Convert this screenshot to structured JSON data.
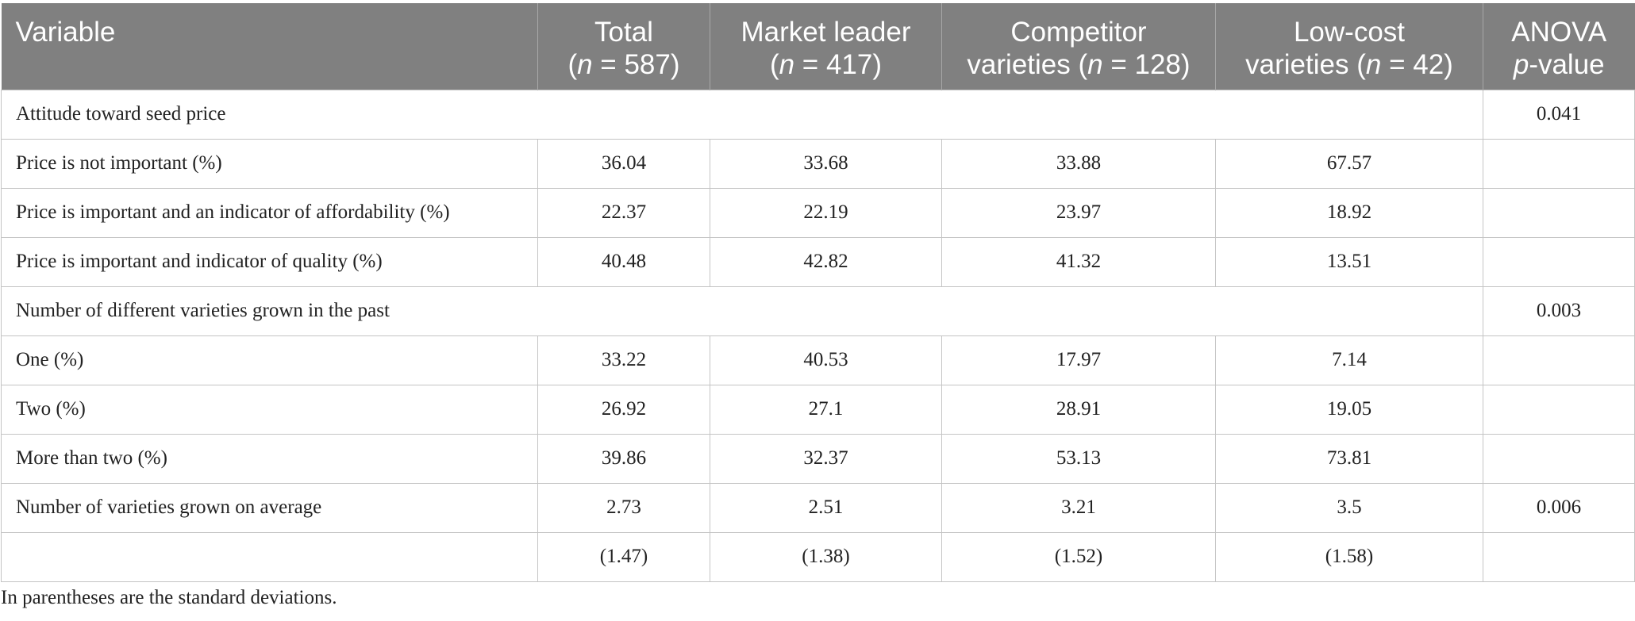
{
  "table": {
    "headers": [
      {
        "line1": "Variable",
        "line2": ""
      },
      {
        "line1": "Total",
        "line2_pre": "(",
        "line2_em": "n",
        "line2_post": " = 587)"
      },
      {
        "line1": "Market leader",
        "line2_pre": "(",
        "line2_em": "n",
        "line2_post": " = 417)"
      },
      {
        "line1": "Competitor",
        "line2_pre": "varieties (",
        "line2_em": "n",
        "line2_post": " = 128)"
      },
      {
        "line1": "Low-cost",
        "line2_pre": "varieties (",
        "line2_em": "n",
        "line2_post": " = 42)"
      },
      {
        "line1": "ANOVA",
        "line2_pre": "",
        "line2_em": "p",
        "line2_post": "-value"
      }
    ],
    "rows": [
      {
        "label": "Attitude toward seed price",
        "p": "0.041"
      },
      {
        "label": "Price is not important (%)",
        "values": [
          "36.04",
          "33.68",
          "33.88",
          "67.57"
        ],
        "p": ""
      },
      {
        "label": "Price is important and an indicator of affordability (%)",
        "values": [
          "22.37",
          "22.19",
          "23.97",
          "18.92"
        ],
        "p": ""
      },
      {
        "label": "Price is important and indicator of quality (%)",
        "values": [
          "40.48",
          "42.82",
          "41.32",
          "13.51"
        ],
        "p": ""
      },
      {
        "label": "Number of different varieties grown in the past",
        "p": "0.003"
      },
      {
        "label": "One (%)",
        "values": [
          "33.22",
          "40.53",
          "17.97",
          "7.14"
        ],
        "p": ""
      },
      {
        "label": "Two (%)",
        "values": [
          "26.92",
          "27.1",
          "28.91",
          "19.05"
        ],
        "p": ""
      },
      {
        "label": "More than two (%)",
        "values": [
          "39.86",
          "32.37",
          "53.13",
          "73.81"
        ],
        "p": ""
      },
      {
        "label": "Number of varieties grown on average",
        "values": [
          "2.73",
          "2.51",
          "3.21",
          "3.5"
        ],
        "p": "0.006"
      },
      {
        "label": "",
        "values": [
          "(1.47)",
          "(1.38)",
          "(1.52)",
          "(1.58)"
        ],
        "p": ""
      }
    ]
  },
  "footnote": "In parentheses are the standard deviations.",
  "colors": {
    "header_bg": "#808080",
    "header_text": "#ffffff",
    "grid": "#c4c4c4"
  }
}
